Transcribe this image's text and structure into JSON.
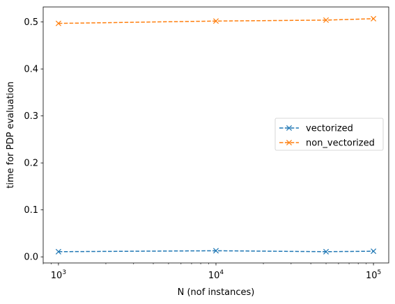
{
  "chart_data": {
    "type": "line",
    "title": "",
    "xlabel": "N (nof instances)",
    "ylabel": "time for PDP evaluation",
    "xscale": "log",
    "xlim": [
      800,
      125000
    ],
    "ylim": [
      -0.013,
      0.532
    ],
    "x_major_ticks": [
      1000,
      10000,
      100000
    ],
    "x_major_tick_labels": [
      {
        "base": "10",
        "exp": "3"
      },
      {
        "base": "10",
        "exp": "4"
      },
      {
        "base": "10",
        "exp": "5"
      }
    ],
    "y_ticks": [
      0.0,
      0.1,
      0.2,
      0.3,
      0.4,
      0.5
    ],
    "y_tick_labels": [
      "0.0",
      "0.1",
      "0.2",
      "0.3",
      "0.4",
      "0.5"
    ],
    "grid": false,
    "legend_position": "center-right",
    "series": [
      {
        "name": "vectorized",
        "color": "#1f77b4",
        "linestyle": "dashed",
        "marker": "x",
        "x": [
          1000,
          10000,
          50000,
          100000
        ],
        "y": [
          0.011,
          0.013,
          0.011,
          0.012
        ]
      },
      {
        "name": "non_vectorized",
        "color": "#ff7f0e",
        "linestyle": "dashed",
        "marker": "x",
        "x": [
          1000,
          10000,
          50000,
          100000
        ],
        "y": [
          0.497,
          0.502,
          0.504,
          0.507
        ]
      }
    ]
  }
}
